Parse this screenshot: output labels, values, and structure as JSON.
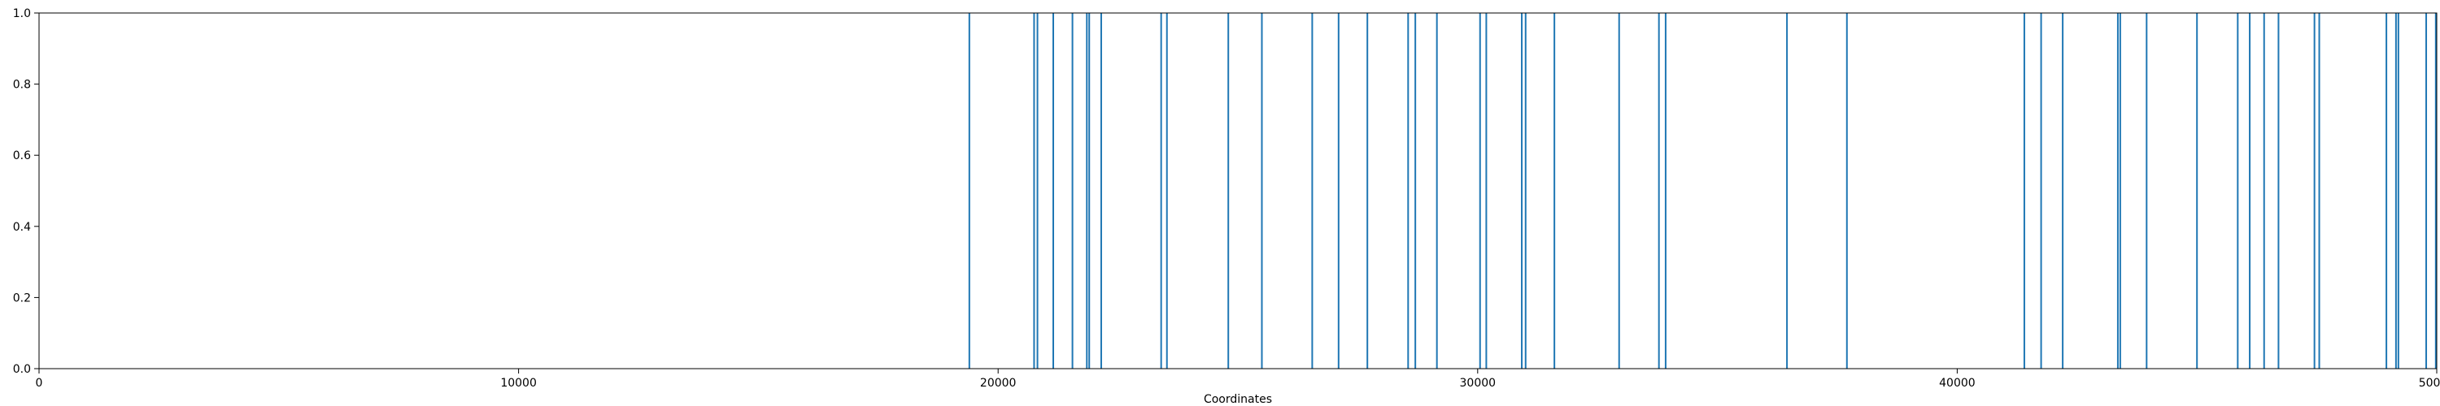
{
  "chart_data": {
    "type": "bar",
    "title": "",
    "xlabel": "Coordinates",
    "ylabel": "",
    "xlim": [
      0,
      50000
    ],
    "ylim": [
      0.0,
      1.0
    ],
    "grid": false,
    "x_ticks": [
      {
        "value": 0,
        "label": "0"
      },
      {
        "value": 10000,
        "label": "10000"
      },
      {
        "value": 20000,
        "label": "20000"
      },
      {
        "value": 30000,
        "label": "30000"
      },
      {
        "value": 40000,
        "label": "40000"
      },
      {
        "value": 50000,
        "label": "50000"
      }
    ],
    "y_ticks": [
      {
        "value": 0.0,
        "label": "0.0"
      },
      {
        "value": 0.2,
        "label": "0.2"
      },
      {
        "value": 0.4,
        "label": "0.4"
      },
      {
        "value": 0.6,
        "label": "0.6"
      },
      {
        "value": 0.8,
        "label": "0.8"
      },
      {
        "value": 1.0,
        "label": "1.0"
      }
    ],
    "series": [
      {
        "color": "#1f77b4",
        "x": [
          19400,
          20750,
          20820,
          21150,
          21550,
          21850,
          21900,
          22150,
          23400,
          23520,
          24800,
          25500,
          26550,
          27100,
          27700,
          28550,
          28700,
          29150,
          30050,
          30180,
          30920,
          31000,
          31600,
          32950,
          33780,
          33920,
          36450,
          37700,
          41400,
          41750,
          42200,
          43350,
          43400,
          43950,
          45000,
          45850,
          46100,
          46400,
          46700,
          47450,
          47550,
          48950,
          49150,
          49200,
          49780,
          49980
        ],
        "values": [
          1,
          1,
          1,
          1,
          1,
          1,
          1,
          1,
          1,
          1,
          1,
          1,
          1,
          1,
          1,
          1,
          1,
          1,
          1,
          1,
          1,
          1,
          1,
          1,
          1,
          1,
          1,
          1,
          1,
          1,
          1,
          1,
          1,
          1,
          1,
          1,
          1,
          1,
          1,
          1,
          1,
          1,
          1,
          1,
          1,
          1
        ]
      }
    ]
  }
}
